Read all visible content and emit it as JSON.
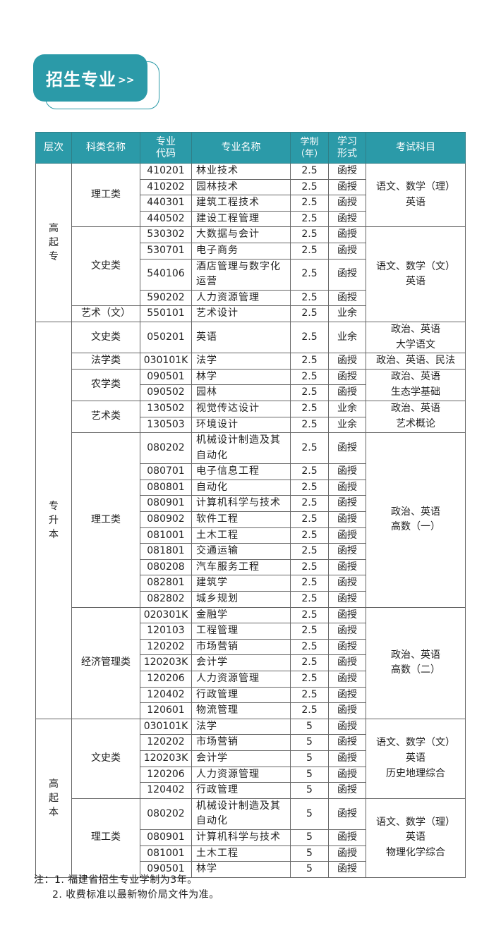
{
  "section_title": "招生专业",
  "section_arrows": ">>",
  "header": [
    "层次",
    "科类名称",
    "专业代码",
    "专业名称",
    "学制（年）",
    "学习形式",
    "考试科目"
  ],
  "header_lines": {
    "level": [
      "层次"
    ],
    "category": [
      "科类名称"
    ],
    "code": [
      "专业",
      "代码"
    ],
    "name": [
      "专业名称"
    ],
    "years": [
      "学制",
      "（年）"
    ],
    "mode": [
      "学习",
      "形式"
    ],
    "exam": [
      "考试科目"
    ]
  },
  "levels": [
    {
      "label": "高起专",
      "exam_groups": [
        {
          "exam": [
            "语文、数学（理）",
            "英语"
          ],
          "categories": [
            {
              "label": "理工类",
              "majors": [
                {
                  "code": "410201",
                  "name": "林业技术",
                  "years": "2.5",
                  "mode": "函授"
                },
                {
                  "code": "410202",
                  "name": "园林技术",
                  "years": "2.5",
                  "mode": "函授"
                },
                {
                  "code": "440301",
                  "name": "建筑工程技术",
                  "years": "2.5",
                  "mode": "函授"
                },
                {
                  "code": "440502",
                  "name": "建设工程管理",
                  "years": "2.5",
                  "mode": "函授"
                }
              ]
            }
          ]
        },
        {
          "exam": [
            "语文、数学（文）",
            "英语"
          ],
          "categories": [
            {
              "label": "文史类",
              "majors": [
                {
                  "code": "530302",
                  "name": "大数据与会计",
                  "years": "2.5",
                  "mode": "函授"
                },
                {
                  "code": "530701",
                  "name": "电子商务",
                  "years": "2.5",
                  "mode": "函授"
                },
                {
                  "code": "540106",
                  "name": "酒店管理与数字化运营",
                  "years": "2.5",
                  "mode": "函授"
                },
                {
                  "code": "590202",
                  "name": "人力资源管理",
                  "years": "2.5",
                  "mode": "函授"
                }
              ]
            },
            {
              "label": "艺术（文）",
              "majors": [
                {
                  "code": "550101",
                  "name": "艺术设计",
                  "years": "2.5",
                  "mode": "业余"
                }
              ]
            }
          ]
        }
      ]
    },
    {
      "label": "专升本",
      "exam_groups": [
        {
          "exam": [
            "政治、英语",
            "大学语文"
          ],
          "categories": [
            {
              "label": "文史类",
              "majors": [
                {
                  "code": "050201",
                  "name": "英语",
                  "years": "2.5",
                  "mode": "业余"
                }
              ]
            }
          ]
        },
        {
          "exam": [
            "政治、英语、民法"
          ],
          "categories": [
            {
              "label": "法学类",
              "majors": [
                {
                  "code": "030101K",
                  "name": "法学",
                  "years": "2.5",
                  "mode": "函授"
                }
              ]
            }
          ]
        },
        {
          "exam": [
            "政治、英语",
            "生态学基础"
          ],
          "categories": [
            {
              "label": "农学类",
              "majors": [
                {
                  "code": "090501",
                  "name": "林学",
                  "years": "2.5",
                  "mode": "函授"
                },
                {
                  "code": "090502",
                  "name": "园林",
                  "years": "2.5",
                  "mode": "函授"
                }
              ]
            }
          ]
        },
        {
          "exam": [
            "政治、英语",
            "艺术概论"
          ],
          "categories": [
            {
              "label": "艺术类",
              "majors": [
                {
                  "code": "130502",
                  "name": "视觉传达设计",
                  "years": "2.5",
                  "mode": "业余"
                },
                {
                  "code": "130503",
                  "name": "环境设计",
                  "years": "2.5",
                  "mode": "业余"
                }
              ]
            }
          ]
        },
        {
          "exam": [
            "政治、英语",
            "高数（一）"
          ],
          "categories": [
            {
              "label": "理工类",
              "majors": [
                {
                  "code": "080202",
                  "name": "机械设计制造及其自动化",
                  "years": "2.5",
                  "mode": "函授"
                },
                {
                  "code": "080701",
                  "name": "电子信息工程",
                  "years": "2.5",
                  "mode": "函授"
                },
                {
                  "code": "080801",
                  "name": "自动化",
                  "years": "2.5",
                  "mode": "函授"
                },
                {
                  "code": "080901",
                  "name": "计算机科学与技术",
                  "years": "2.5",
                  "mode": "函授"
                },
                {
                  "code": "080902",
                  "name": "软件工程",
                  "years": "2.5",
                  "mode": "函授"
                },
                {
                  "code": "081001",
                  "name": "土木工程",
                  "years": "2.5",
                  "mode": "函授"
                },
                {
                  "code": "081801",
                  "name": "交通运输",
                  "years": "2.5",
                  "mode": "函授"
                },
                {
                  "code": "080208",
                  "name": "汽车服务工程",
                  "years": "2.5",
                  "mode": "函授"
                },
                {
                  "code": "082801",
                  "name": "建筑学",
                  "years": "2.5",
                  "mode": "函授"
                },
                {
                  "code": "082802",
                  "name": "城乡规划",
                  "years": "2.5",
                  "mode": "函授"
                }
              ]
            }
          ]
        },
        {
          "exam": [
            "政治、英语",
            "高数（二）"
          ],
          "categories": [
            {
              "label": "经济管理类",
              "majors": [
                {
                  "code": "020301K",
                  "name": "金融学",
                  "years": "2.5",
                  "mode": "函授"
                },
                {
                  "code": "120103",
                  "name": "工程管理",
                  "years": "2.5",
                  "mode": "函授"
                },
                {
                  "code": "120202",
                  "name": "市场营销",
                  "years": "2.5",
                  "mode": "函授"
                },
                {
                  "code": "120203K",
                  "name": "会计学",
                  "years": "2.5",
                  "mode": "函授"
                },
                {
                  "code": "120206",
                  "name": "人力资源管理",
                  "years": "2.5",
                  "mode": "函授"
                },
                {
                  "code": "120402",
                  "name": "行政管理",
                  "years": "2.5",
                  "mode": "函授"
                },
                {
                  "code": "120601",
                  "name": "物流管理",
                  "years": "2.5",
                  "mode": "函授"
                }
              ]
            }
          ]
        }
      ]
    },
    {
      "label": "高起本",
      "exam_groups": [
        {
          "exam": [
            "语文、数学（文）",
            "英语",
            "历史地理综合"
          ],
          "categories": [
            {
              "label": "文史类",
              "majors": [
                {
                  "code": "030101K",
                  "name": "法学",
                  "years": "5",
                  "mode": "函授"
                },
                {
                  "code": "120202",
                  "name": "市场营销",
                  "years": "5",
                  "mode": "函授"
                },
                {
                  "code": "120203K",
                  "name": "会计学",
                  "years": "5",
                  "mode": "函授"
                },
                {
                  "code": "120206",
                  "name": "人力资源管理",
                  "years": "5",
                  "mode": "函授"
                },
                {
                  "code": "120402",
                  "name": "行政管理",
                  "years": "5",
                  "mode": "函授"
                }
              ]
            }
          ]
        },
        {
          "exam": [
            "语文、数学（理）",
            "英语",
            "物理化学综合"
          ],
          "categories": [
            {
              "label": "理工类",
              "majors": [
                {
                  "code": "080202",
                  "name": "机械设计制造及其自动化",
                  "years": "5",
                  "mode": "函授"
                },
                {
                  "code": "080901",
                  "name": "计算机科学与技术",
                  "years": "5",
                  "mode": "函授"
                },
                {
                  "code": "081001",
                  "name": "土木工程",
                  "years": "5",
                  "mode": "函授"
                },
                {
                  "code": "090501",
                  "name": "林学",
                  "years": "5",
                  "mode": "函授"
                }
              ]
            }
          ]
        }
      ]
    }
  ],
  "notes": [
    "注：1. 福建省招生专业学制为3年。",
    "2. 收费标准以最新物价局文件为准。"
  ],
  "colors": {
    "accent": "#2b9aa8"
  }
}
